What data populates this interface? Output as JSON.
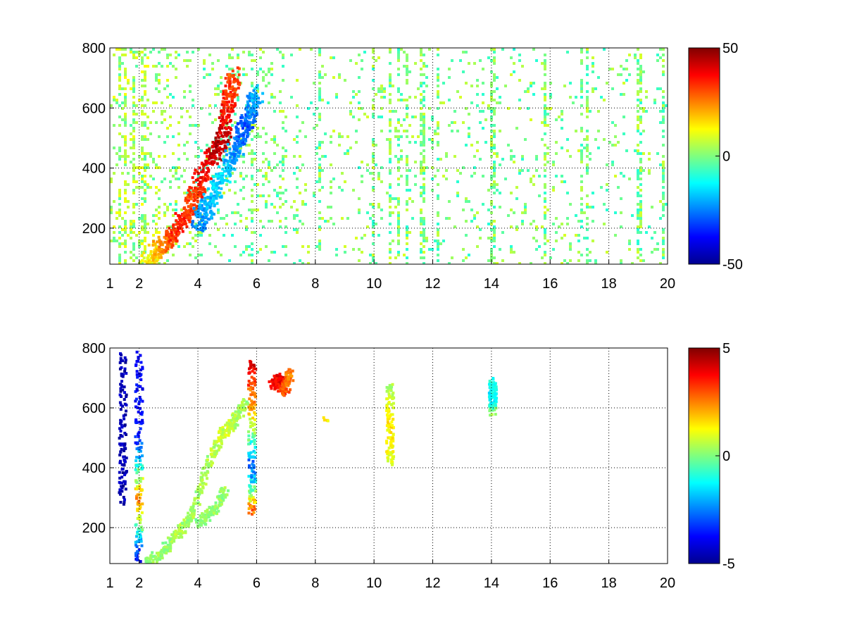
{
  "chart_data": [
    {
      "type": "heatmap",
      "title": "",
      "xlabel": "",
      "ylabel": "",
      "colormap": "jet",
      "xlim": [
        1,
        20
      ],
      "ylim": [
        80,
        800
      ],
      "xtick_labels": [
        "1",
        "2",
        "4",
        "6",
        "8",
        "10",
        "12",
        "14",
        "16",
        "18",
        "20"
      ],
      "xtick_values": [
        1,
        2,
        4,
        6,
        8,
        10,
        12,
        14,
        16,
        18,
        20
      ],
      "ytick_labels": [
        "200",
        "400",
        "600",
        "800"
      ],
      "ytick_values": [
        200,
        400,
        600,
        800
      ],
      "grid": true,
      "colorbar": {
        "min": -50,
        "max": 50,
        "tick_labels": [
          "-50",
          "0",
          "50"
        ],
        "tick_values": [
          -50,
          0,
          50
        ]
      },
      "features": [
        {
          "name": "positive ridge",
          "points": [
            [
              2.2,
              90,
              10
            ],
            [
              2.8,
              150,
              25
            ],
            [
              3.3,
              210,
              35
            ],
            [
              3.8,
              300,
              30
            ],
            [
              4.3,
              420,
              40
            ],
            [
              4.8,
              500,
              45
            ],
            [
              5.0,
              620,
              35
            ],
            [
              5.2,
              720,
              30
            ]
          ]
        },
        {
          "name": "negative ridge",
          "points": [
            [
              3.9,
              220,
              -25
            ],
            [
              4.3,
              280,
              -20
            ],
            [
              4.8,
              380,
              -15
            ],
            [
              5.3,
              480,
              -25
            ],
            [
              5.6,
              560,
              -30
            ],
            [
              6.0,
              650,
              -20
            ]
          ]
        }
      ],
      "vertical_streaks_x": [
        1.3,
        1.5,
        1.8,
        2.1,
        5.8,
        8.1,
        9.9,
        10.5,
        10.8,
        11.1,
        11.6,
        12.1,
        14.0,
        15.8,
        17.0,
        17.2,
        19.0,
        19.8
      ]
    },
    {
      "type": "heatmap",
      "title": "",
      "xlabel": "",
      "ylabel": "",
      "colormap": "jet",
      "xlim": [
        1,
        20
      ],
      "ylim": [
        80,
        800
      ],
      "xtick_labels": [
        "1",
        "2",
        "4",
        "6",
        "8",
        "10",
        "12",
        "14",
        "16",
        "18",
        "20"
      ],
      "xtick_values": [
        1,
        2,
        4,
        6,
        8,
        10,
        12,
        14,
        16,
        18,
        20
      ],
      "ytick_labels": [
        "200",
        "400",
        "600",
        "800"
      ],
      "ytick_values": [
        200,
        400,
        600,
        800
      ],
      "grid": true,
      "colorbar": {
        "min": -5,
        "max": 5,
        "tick_labels": [
          "-5",
          "0",
          "5"
        ],
        "tick_values": [
          -5,
          0,
          5
        ]
      },
      "features": [
        {
          "name": "main band",
          "points": [
            [
              2.2,
              85,
              0.3
            ],
            [
              2.8,
              130,
              0.2
            ],
            [
              3.3,
              190,
              0.5
            ],
            [
              3.8,
              260,
              0.3
            ],
            [
              4.3,
              420,
              0.4
            ],
            [
              4.8,
              520,
              0.8
            ],
            [
              5.2,
              560,
              0.5
            ],
            [
              5.6,
              620,
              0.3
            ]
          ]
        },
        {
          "name": "lower branch",
          "points": [
            [
              4.0,
              220,
              0.1
            ],
            [
              4.5,
              260,
              0.2
            ],
            [
              4.9,
              330,
              0.3
            ]
          ]
        },
        {
          "name": "streak x=1.4",
          "points": [
            [
              1.4,
              300,
              -4.5
            ],
            [
              1.4,
              500,
              -4.5
            ],
            [
              1.4,
              780,
              -4.5
            ]
          ]
        },
        {
          "name": "streak x=1.9",
          "points": [
            [
              1.95,
              100,
              -4.0
            ],
            [
              1.95,
              300,
              2.5
            ],
            [
              1.95,
              500,
              -3.5
            ],
            [
              1.95,
              780,
              -4.0
            ]
          ]
        },
        {
          "name": "streak x=5.8",
          "points": [
            [
              5.8,
              260,
              3.0
            ],
            [
              5.8,
              400,
              -3.0
            ],
            [
              5.8,
              600,
              2.0
            ],
            [
              5.8,
              760,
              4.0
            ]
          ]
        },
        {
          "name": "cluster x=6.8",
          "points": [
            [
              6.5,
              680,
              3.5
            ],
            [
              6.7,
              700,
              4.0
            ],
            [
              6.9,
              660,
              3.0
            ],
            [
              7.1,
              720,
              2.5
            ]
          ]
        },
        {
          "name": "streak x=10.5",
          "points": [
            [
              10.5,
              420,
              1.0
            ],
            [
              10.5,
              550,
              1.5
            ],
            [
              10.5,
              680,
              0.5
            ]
          ]
        },
        {
          "name": "blob x=14",
          "points": [
            [
              14.0,
              590,
              0.5
            ],
            [
              14.0,
              640,
              -1.5
            ],
            [
              14.0,
              690,
              -1.0
            ]
          ]
        },
        {
          "name": "spot x=8.3",
          "points": [
            [
              8.3,
              570,
              1.5
            ]
          ]
        }
      ]
    }
  ]
}
